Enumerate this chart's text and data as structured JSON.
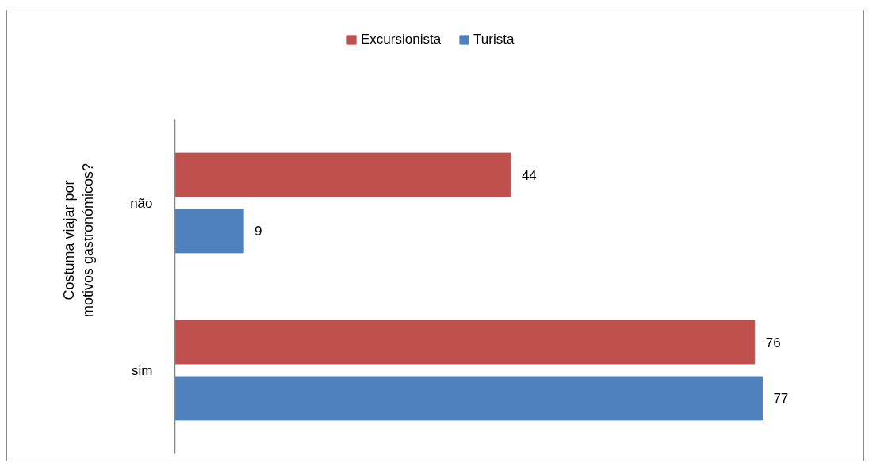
{
  "chart_data": {
    "type": "bar",
    "orientation": "horizontal",
    "ylabel": "Costuma viajar por motivos gastronómicos?",
    "categories": [
      "não",
      "sim"
    ],
    "series": [
      {
        "name": "Excursionista",
        "color": "#c0504d",
        "values": [
          44,
          76
        ]
      },
      {
        "name": "Turista",
        "color": "#4f81bd",
        "values": [
          9,
          77
        ]
      }
    ],
    "xlim": [
      0,
      90
    ],
    "tick_labels": "y",
    "data_labels": true,
    "legend": "top",
    "grid": false
  }
}
